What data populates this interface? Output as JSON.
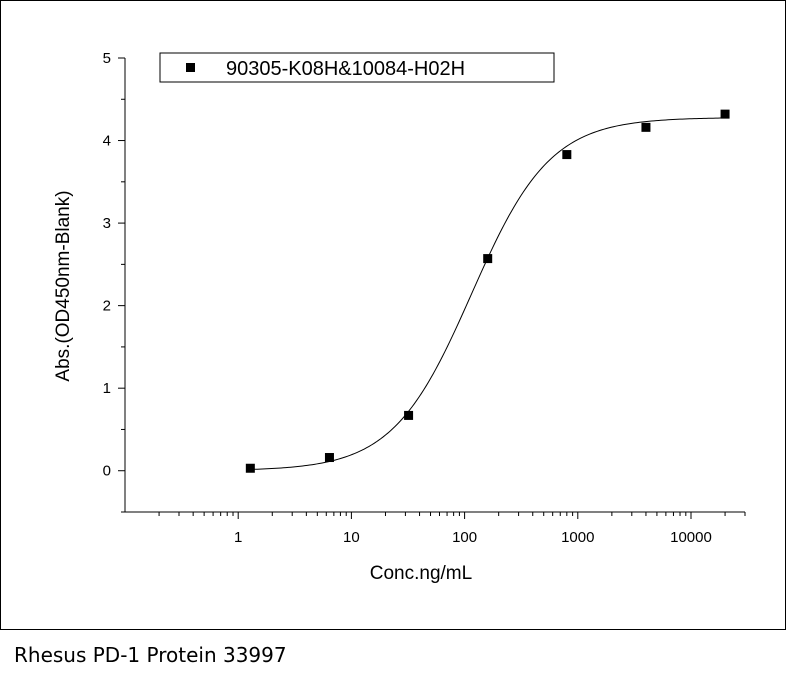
{
  "caption": "Rhesus PD-1 Protein 33997",
  "chart_data": {
    "type": "scatter",
    "title": "",
    "xlabel": "Conc.ng/mL",
    "ylabel": "Abs.(OD450nm-Blank)",
    "xscale": "log",
    "xlim": [
      0.1,
      30000
    ],
    "ylim": [
      -0.5,
      5
    ],
    "xticks": [
      {
        "value": 1,
        "label": "1"
      },
      {
        "value": 10,
        "label": "10"
      },
      {
        "value": 100,
        "label": "100"
      },
      {
        "value": 1000,
        "label": "1000"
      },
      {
        "value": 10000,
        "label": "10000"
      }
    ],
    "yticks": [
      {
        "value": 0,
        "label": "0"
      },
      {
        "value": 1,
        "label": "1"
      },
      {
        "value": 2,
        "label": "2"
      },
      {
        "value": 3,
        "label": "3"
      },
      {
        "value": 4,
        "label": "4"
      },
      {
        "value": 5,
        "label": "5"
      }
    ],
    "grid": false,
    "legend_position": "top",
    "series": [
      {
        "name": "90305-K08H&10084-H02H",
        "marker": "square",
        "color": "#000000",
        "x": [
          1.28,
          6.4,
          32,
          160,
          800,
          4000,
          20000
        ],
        "y": [
          0.03,
          0.16,
          0.67,
          2.57,
          3.83,
          4.16,
          4.32
        ]
      }
    ],
    "fit_curve": {
      "model": "4PL",
      "bottom": 0.0,
      "top": 4.28,
      "ec50": 115,
      "hill": 1.25
    }
  }
}
